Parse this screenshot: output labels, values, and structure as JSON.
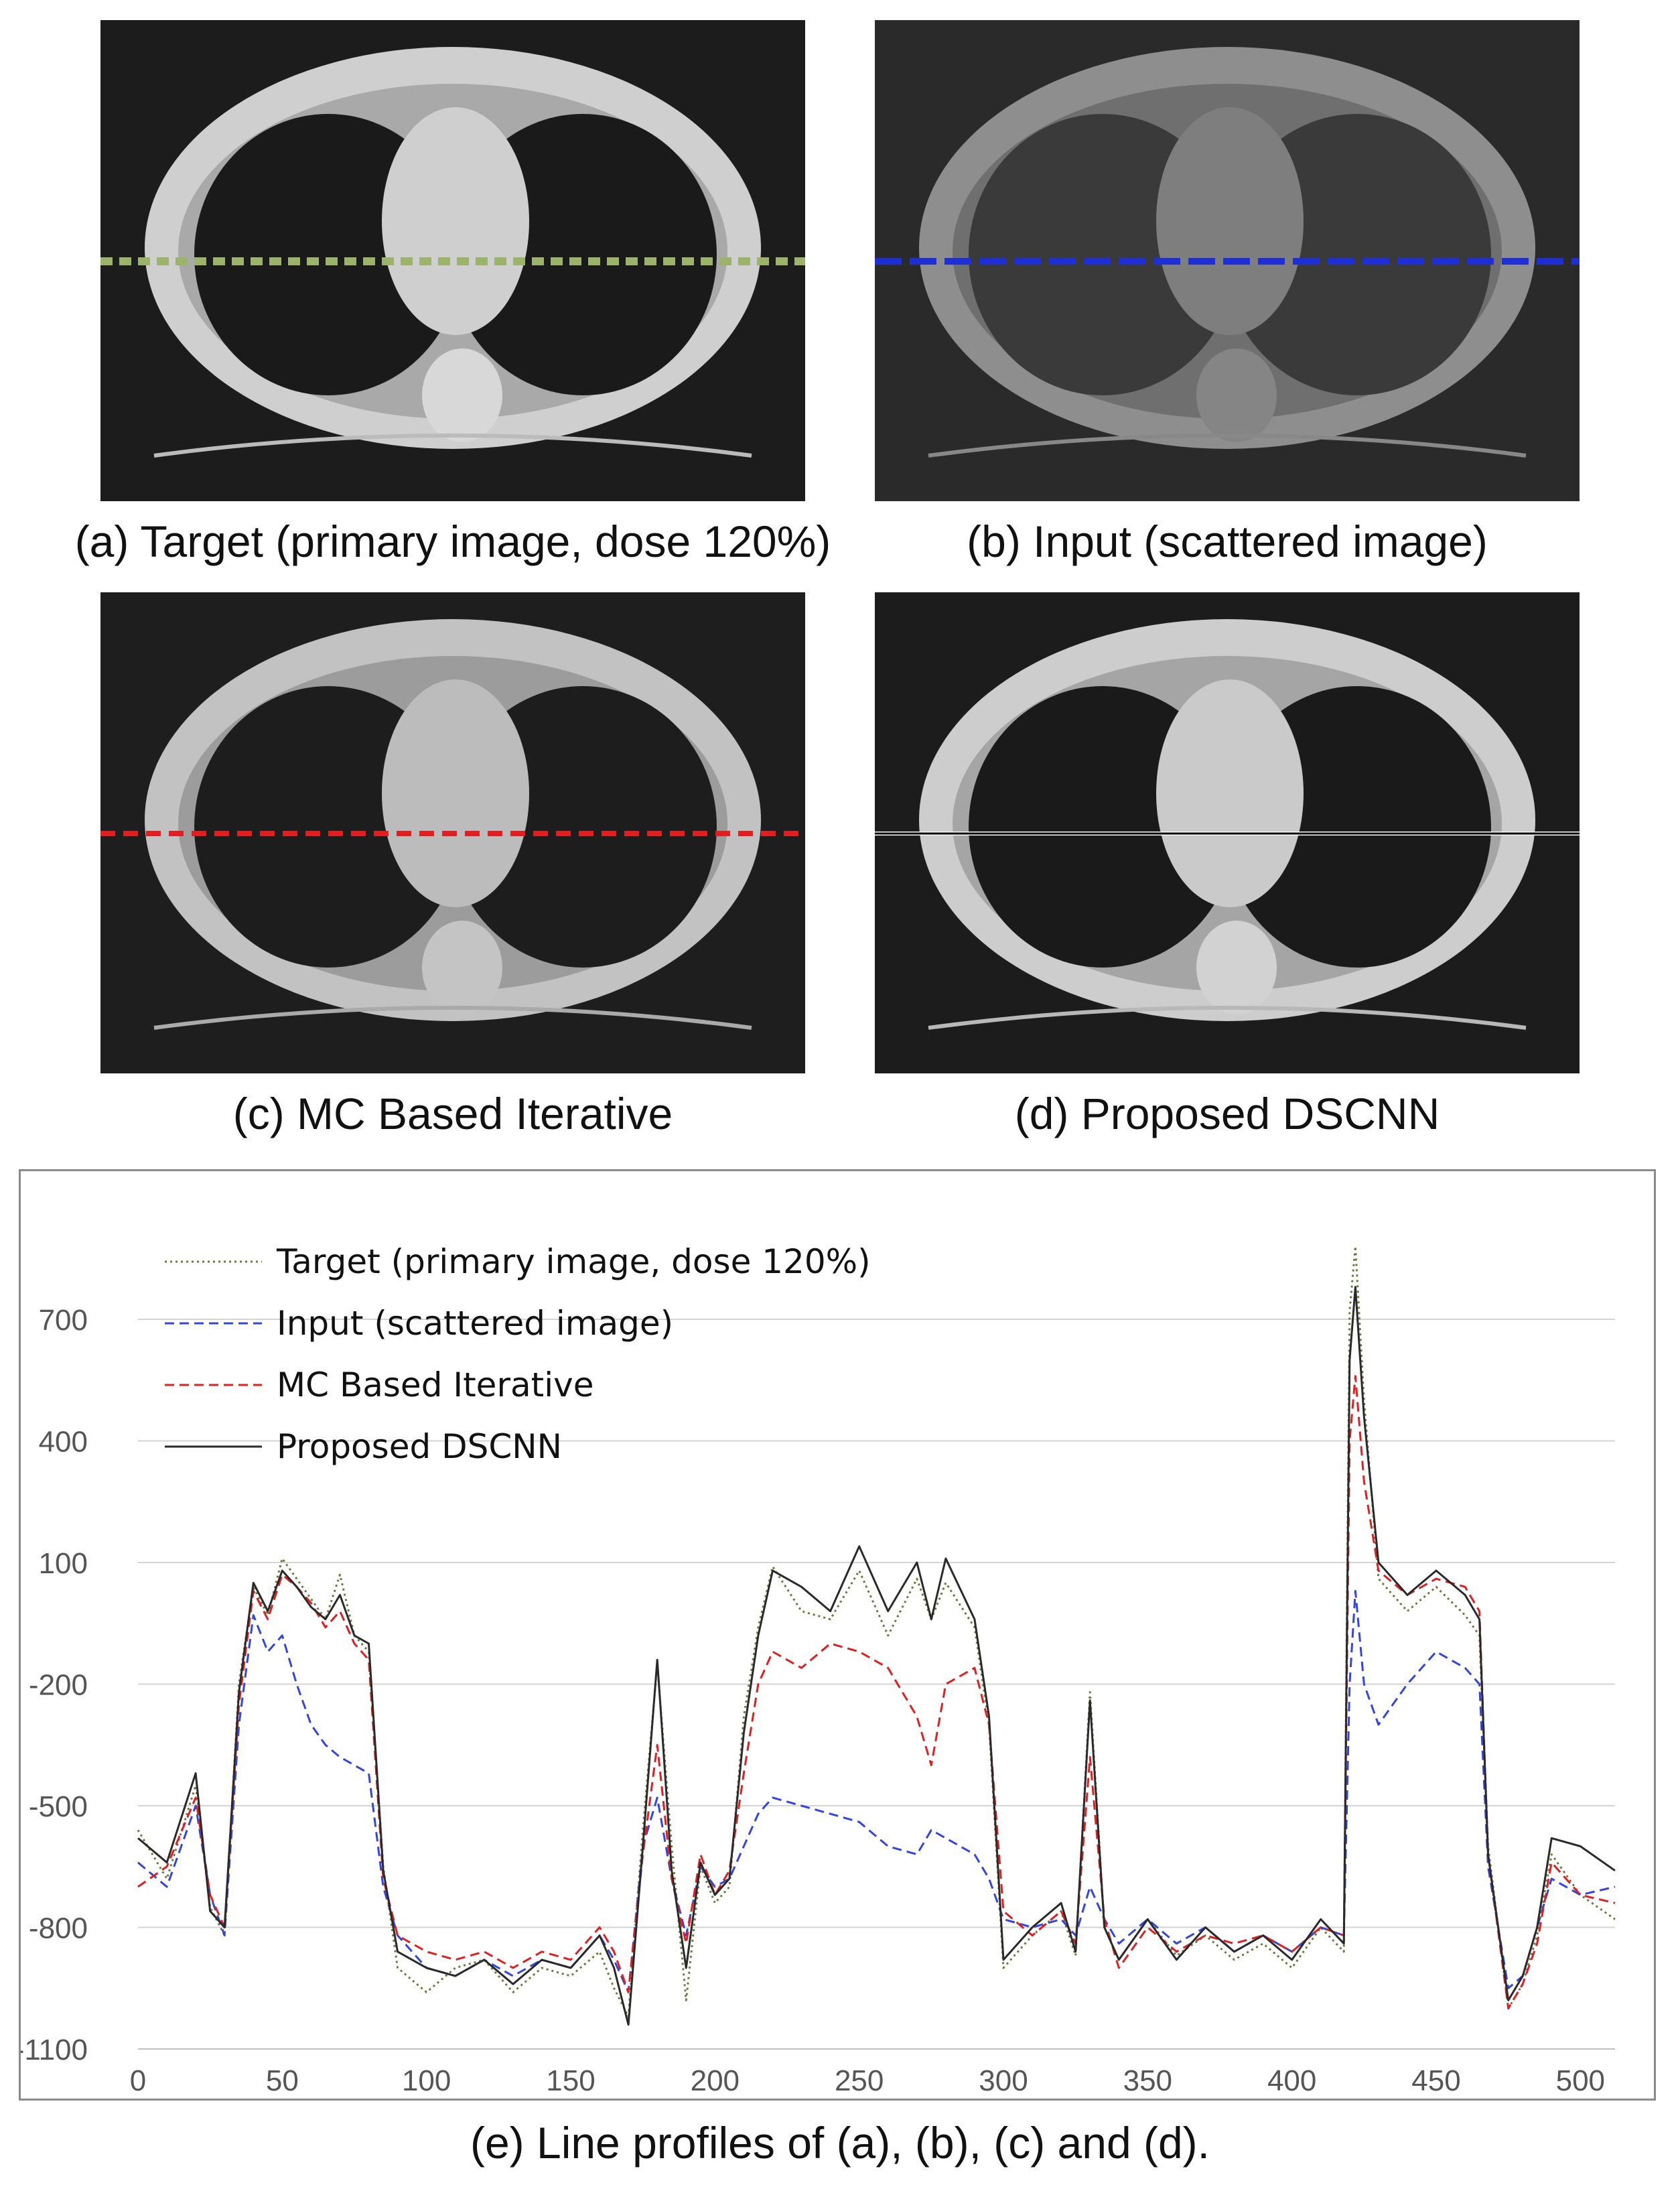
{
  "panels": {
    "a": {
      "caption": "(a) Target (primary image, dose 120%)",
      "line_color": "#9bb36a"
    },
    "b": {
      "caption": "(b) Input (scattered image)",
      "line_color": "#1f2fd6"
    },
    "c": {
      "caption": "(c) MC Based Iterative",
      "line_color": "#e02020"
    },
    "d": {
      "caption": "(d) Proposed DSCNN",
      "line_color": "#000000"
    }
  },
  "figure_caption": "(e) Line profiles of (a), (b), (c) and (d).",
  "chart_data": {
    "type": "line",
    "title": "",
    "xlabel": "",
    "ylabel": "",
    "xlim": [
      0,
      512
    ],
    "ylim": [
      -1100,
      900
    ],
    "x_ticks": [
      0,
      50,
      100,
      150,
      200,
      250,
      300,
      350,
      400,
      450,
      500
    ],
    "y_ticks": [
      700,
      400,
      100,
      -200,
      -500,
      -800,
      -1100
    ],
    "grid": true,
    "legend_position": "top-left",
    "x": [
      0,
      10,
      20,
      25,
      30,
      35,
      40,
      45,
      50,
      55,
      60,
      65,
      70,
      75,
      80,
      85,
      90,
      100,
      110,
      120,
      130,
      140,
      150,
      160,
      165,
      170,
      175,
      180,
      185,
      190,
      195,
      200,
      205,
      210,
      215,
      220,
      230,
      240,
      250,
      260,
      270,
      275,
      280,
      290,
      295,
      300,
      310,
      320,
      325,
      330,
      335,
      340,
      350,
      360,
      370,
      380,
      390,
      400,
      410,
      418,
      420,
      422,
      425,
      430,
      440,
      450,
      460,
      465,
      468,
      475,
      480,
      485,
      490,
      500,
      512
    ],
    "series": [
      {
        "name": "Target (primary image, dose 120%)",
        "color": "#6b7a3a",
        "dash": "dotted",
        "values": [
          -560,
          -680,
          -450,
          -750,
          -820,
          -200,
          40,
          -30,
          110,
          60,
          10,
          -40,
          70,
          -80,
          -120,
          -650,
          -900,
          -960,
          -900,
          -880,
          -960,
          -900,
          -920,
          -860,
          -950,
          -1020,
          -560,
          -150,
          -600,
          -980,
          -650,
          -740,
          -700,
          -280,
          -60,
          90,
          -20,
          -40,
          80,
          -80,
          60,
          -40,
          50,
          -60,
          -300,
          -900,
          -820,
          -760,
          -870,
          -220,
          -800,
          -880,
          -780,
          -870,
          -820,
          -880,
          -840,
          -900,
          -800,
          -860,
          720,
          880,
          500,
          60,
          -20,
          40,
          -30,
          -80,
          -600,
          -1000,
          -940,
          -820,
          -620,
          -720,
          -780
        ]
      },
      {
        "name": "Input (scattered image)",
        "color": "#3345e0",
        "dash": "dashed",
        "values": [
          -640,
          -700,
          -500,
          -720,
          -820,
          -300,
          -30,
          -120,
          -80,
          -200,
          -300,
          -350,
          -380,
          -400,
          -420,
          -700,
          -820,
          -900,
          -920,
          -880,
          -920,
          -880,
          -900,
          -820,
          -880,
          -960,
          -600,
          -480,
          -680,
          -820,
          -650,
          -700,
          -680,
          -600,
          -520,
          -480,
          -500,
          -520,
          -540,
          -600,
          -620,
          -560,
          -580,
          -620,
          -680,
          -780,
          -800,
          -780,
          -820,
          -700,
          -780,
          -840,
          -780,
          -840,
          -800,
          -860,
          -820,
          -860,
          -800,
          -820,
          -200,
          30,
          -200,
          -300,
          -200,
          -120,
          -160,
          -200,
          -650,
          -950,
          -920,
          -800,
          -680,
          -720,
          -700
        ]
      },
      {
        "name": "MC Based Iterative",
        "color": "#e02020",
        "dash": "dashed",
        "values": [
          -700,
          -650,
          -480,
          -720,
          -800,
          -250,
          30,
          -40,
          70,
          40,
          0,
          -60,
          -20,
          -100,
          -140,
          -680,
          -820,
          -860,
          -880,
          -860,
          -900,
          -860,
          -880,
          -800,
          -860,
          -960,
          -620,
          -350,
          -680,
          -840,
          -620,
          -720,
          -660,
          -420,
          -200,
          -120,
          -160,
          -100,
          -120,
          -160,
          -280,
          -400,
          -200,
          -160,
          -300,
          -760,
          -820,
          -760,
          -840,
          -380,
          -780,
          -900,
          -800,
          -860,
          -820,
          -840,
          -820,
          -860,
          -800,
          -820,
          400,
          560,
          300,
          80,
          20,
          60,
          40,
          -20,
          -620,
          -1000,
          -940,
          -840,
          -640,
          -720,
          -740
        ]
      },
      {
        "name": "Proposed DSCNN",
        "color": "#2a2a2a",
        "dash": "solid",
        "values": [
          -580,
          -640,
          -420,
          -760,
          -800,
          -220,
          50,
          -20,
          80,
          40,
          -10,
          -40,
          20,
          -80,
          -100,
          -660,
          -860,
          -900,
          -920,
          -880,
          -940,
          -880,
          -900,
          -820,
          -900,
          -1040,
          -600,
          -140,
          -660,
          -900,
          -640,
          -720,
          -680,
          -320,
          -80,
          80,
          40,
          -20,
          140,
          -20,
          100,
          -40,
          110,
          -40,
          -280,
          -880,
          -800,
          -740,
          -860,
          -240,
          -800,
          -880,
          -780,
          -880,
          -800,
          -860,
          -820,
          -880,
          -780,
          -840,
          600,
          780,
          460,
          100,
          20,
          80,
          20,
          -40,
          -620,
          -980,
          -920,
          -800,
          -580,
          -600,
          -660
        ]
      }
    ]
  }
}
